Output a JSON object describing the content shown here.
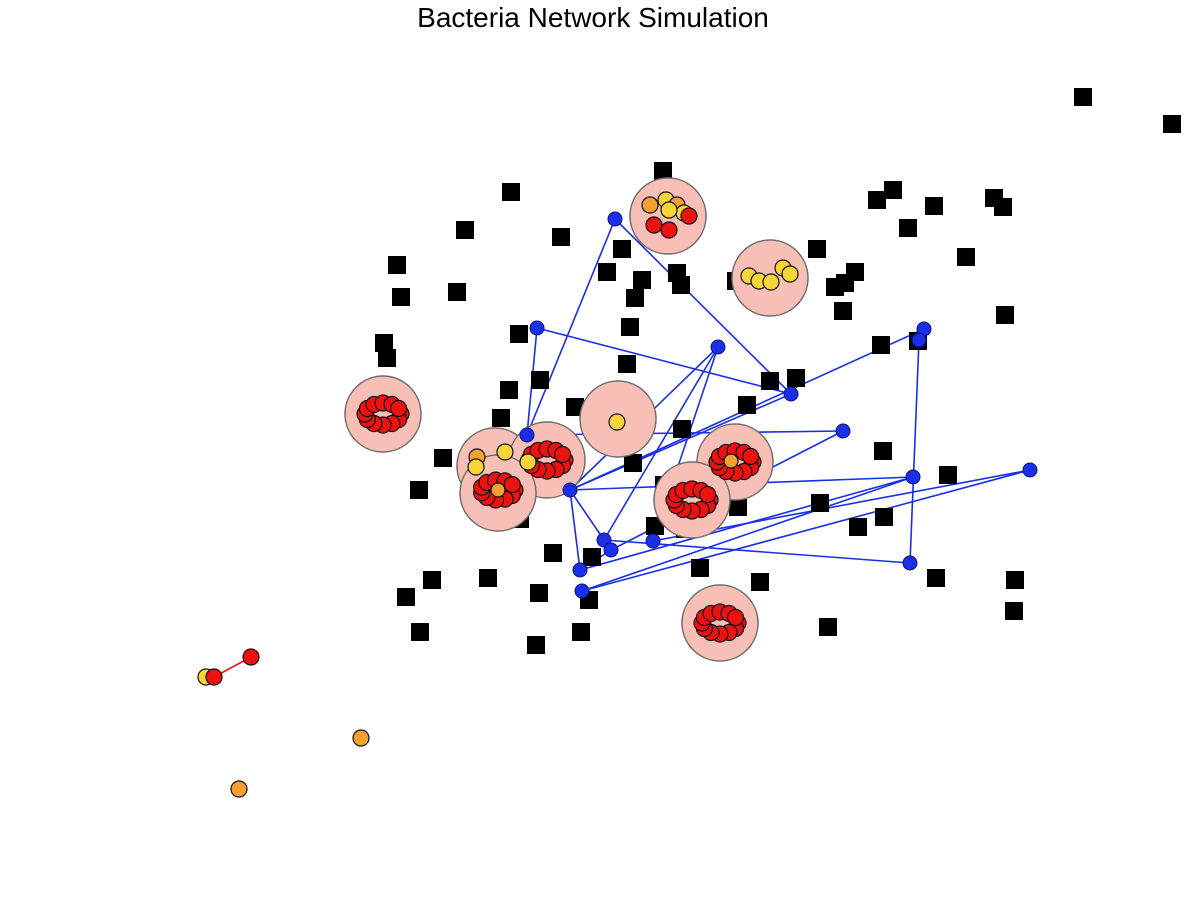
{
  "title": "Bacteria Network Simulation",
  "colors": {
    "blob_fill": "#f8bfb6",
    "blob_stroke": "#6e6e6e",
    "red": "#ee1111",
    "orange": "#f5a030",
    "yellow": "#f7d53a",
    "blue_node": "#1a2fe6",
    "blue_edge": "#1a2fe6",
    "red_edge": "#e01818",
    "square": "#000000"
  },
  "icons": {
    "square": "black-square-node",
    "blue": "blue-octagon-node",
    "blob": "pink-cluster-circle",
    "bacterium": "bacterium-circle"
  }
}
